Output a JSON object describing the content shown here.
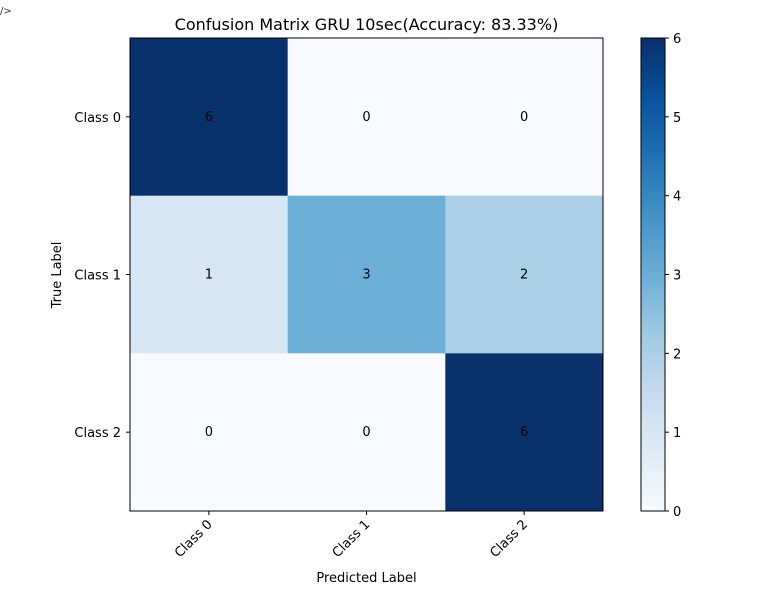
{
  "corner_text": "/>",
  "chart_data": {
    "type": "heatmap",
    "title": "Confusion Matrix GRU  10sec(Accuracy: 83.33%)",
    "xlabel": "Predicted Label",
    "ylabel": "True Label",
    "x_categories": [
      "Class 0",
      "Class 1",
      "Class 2"
    ],
    "y_categories": [
      "Class 0",
      "Class 1",
      "Class 2"
    ],
    "matrix": [
      [
        6,
        0,
        0
      ],
      [
        1,
        3,
        2
      ],
      [
        0,
        0,
        6
      ]
    ],
    "colormap": "Blues",
    "color_range": [
      0,
      6
    ],
    "colorbar_ticks": [
      0,
      1,
      2,
      3,
      4,
      5,
      6
    ],
    "grid": false,
    "x_tick_rotation": "45 degrees"
  }
}
